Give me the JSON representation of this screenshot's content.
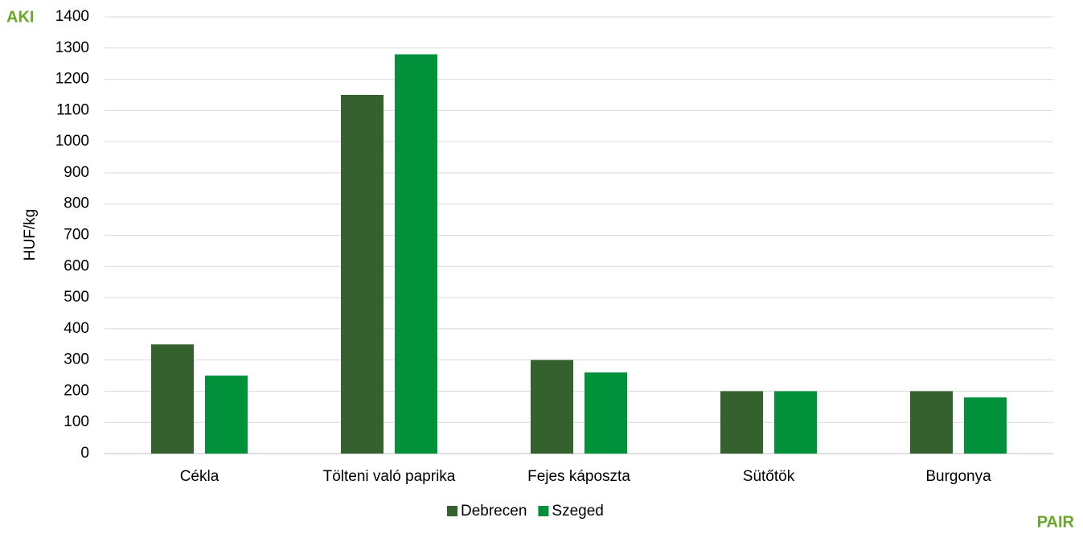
{
  "logo_top": "AKI",
  "logo_bottom": "PAIR",
  "chart_data": {
    "type": "bar",
    "y_label": "HUF/kg",
    "categories": [
      "Cékla",
      "Tölteni való paprika",
      "Fejes káposzta",
      "Sütőtök",
      "Burgonya"
    ],
    "series": [
      {
        "name": "Debrecen",
        "color": "#34612d",
        "values": [
          350,
          1150,
          300,
          200,
          200
        ]
      },
      {
        "name": "Szeged",
        "color": "#00913a",
        "values": [
          250,
          1280,
          260,
          200,
          180
        ]
      }
    ],
    "ylim": [
      0,
      1400
    ],
    "yticks": [
      0,
      100,
      200,
      300,
      400,
      500,
      600,
      700,
      800,
      900,
      1000,
      1100,
      1200,
      1300,
      1400
    ],
    "grid": true,
    "legend": "bottom"
  }
}
